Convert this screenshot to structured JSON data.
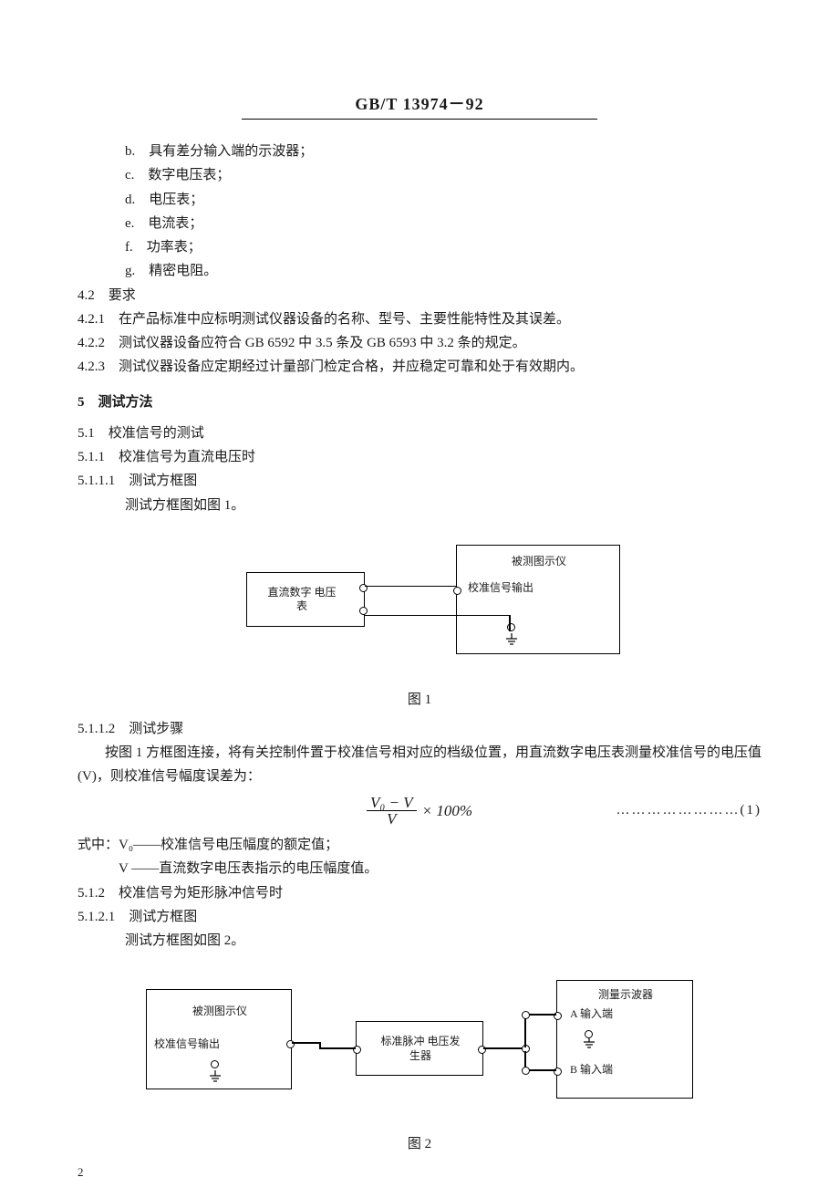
{
  "header": "GB/T 13974－92",
  "list_letters": [
    {
      "k": "b.",
      "t": "具有差分输入端的示波器；"
    },
    {
      "k": "c.",
      "t": "数字电压表；"
    },
    {
      "k": "d.",
      "t": "电压表；"
    },
    {
      "k": "e.",
      "t": "电流表；"
    },
    {
      "k": "f.",
      "t": "功率表；"
    },
    {
      "k": "g.",
      "t": "精密电阻。"
    }
  ],
  "s42": "4.2　要求",
  "s421": "4.2.1　在产品标准中应标明测试仪器设备的名称、型号、主要性能特性及其误差。",
  "s422": "4.2.2　测试仪器设备应符合 GB 6592 中 3.5 条及 GB 6593 中 3.2 条的规定。",
  "s423": "4.2.3　测试仪器设备应定期经过计量部门检定合格，并应稳定可靠和处于有效期内。",
  "s5": "5　测试方法",
  "s51": "5.1　校准信号的测试",
  "s511": "5.1.1　校准信号为直流电压时",
  "s5111": "5.1.1.1　测试方框图",
  "s5111b": "测试方框图如图 1。",
  "fig1": {
    "caption": "图 1",
    "left_box": "直流数字\n电压表",
    "right_top": "被测图示仪",
    "right_label": "校准信号输出"
  },
  "s5112": "5.1.1.2　测试步骤",
  "s5112p": "　　按图 1 方框图连接，将有关控制件置于校准信号相对应的档级位置，用直流数字电压表测量校准信号的电压值(V)，则校准信号幅度误差为：",
  "formula": {
    "num": "V₀ − V",
    "den": "V",
    "tail": "× 100%",
    "eqnum": "……………………(1)"
  },
  "defs": {
    "l1": "式中：V₀——校准信号电压幅度的额定值；",
    "l2": "　　　V ——直流数字电压表指示的电压幅度值。"
  },
  "s512": "5.1.2　校准信号为矩形脉冲信号时",
  "s5121": "5.1.2.1　测试方框图",
  "s5121b": "测试方框图如图 2。",
  "fig2": {
    "caption": "图 2",
    "left_top": "被测图示仪",
    "left_label": "校准信号输出",
    "mid": "标准脉冲\n电压发生器",
    "right_top": "测量示波器",
    "right_a": "A 输入端",
    "right_b": "B 输入端"
  },
  "pagenum": "2"
}
